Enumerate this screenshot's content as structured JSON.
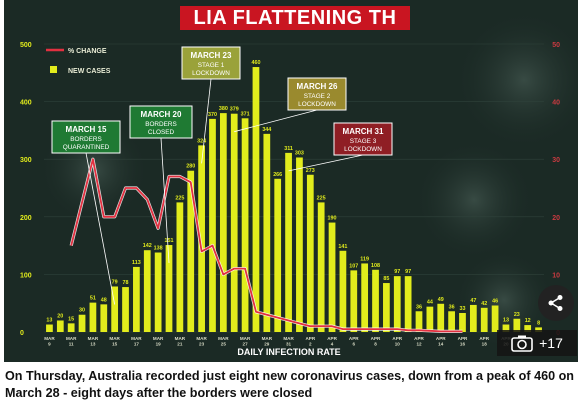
{
  "banner": {
    "text": "LIA FLATTENING TH"
  },
  "legend": {
    "change_label": "% CHANGE",
    "cases_label": "NEW CASES"
  },
  "annotations": [
    {
      "id": "mar15",
      "line1": "MARCH 15",
      "line2": "BORDERS",
      "line3": "QUARANTINED",
      "day": 15,
      "fill": "#1f7a33",
      "text": "#ffffff"
    },
    {
      "id": "mar20",
      "line1": "MARCH 20",
      "line2": "BORDERS",
      "line3": "CLOSED",
      "day": 20,
      "fill": "#1f7a33",
      "text": "#ffffff"
    },
    {
      "id": "mar23",
      "line1": "MARCH 23",
      "line2": "STAGE 1",
      "line3": "LOCKDOWN",
      "day": 23,
      "fill": "#9aa23a",
      "text": "#ffffff"
    },
    {
      "id": "mar26",
      "line1": "MARCH 26",
      "line2": "STAGE 2",
      "line3": "LOCKDOWN",
      "day": 26,
      "fill": "#9a8a2e",
      "text": "#ffffff"
    },
    {
      "id": "mar31",
      "line1": "MARCH 31",
      "line2": "STAGE 3",
      "line3": "LOCKDOWN",
      "day": 31,
      "fill": "#8f1e24",
      "text": "#ffffff"
    }
  ],
  "chart_data": {
    "type": "bar",
    "xlabel": "DAILY INFECTION RATE",
    "ylim": [
      0,
      500
    ],
    "y_ticks": [
      "0",
      "100",
      "200",
      "300",
      "400",
      "500"
    ],
    "y2_ticks": [
      "0",
      "10",
      "20",
      "30",
      "40",
      "50"
    ],
    "x_ticks": [
      "MAR 9",
      "MAR 11",
      "MAR 13",
      "MAR 15",
      "MAR 17",
      "MAR 19",
      "MAR 21",
      "MAR 23",
      "MAR 25",
      "MAR 27",
      "MAR 29",
      "MAR 31",
      "APR 2",
      "APR 4",
      "APR 6",
      "APR 8",
      "APR 10",
      "APR 12",
      "APR 14",
      "APR 16",
      "APR 18",
      "APR 20"
    ],
    "values": [
      13,
      20,
      15,
      30,
      51,
      48,
      79,
      78,
      113,
      142,
      138,
      151,
      225,
      280,
      324,
      370,
      380,
      379,
      371,
      460,
      344,
      266,
      311,
      303,
      273,
      225,
      190,
      141,
      107,
      119,
      108,
      85,
      97,
      97,
      36,
      44,
      49,
      36,
      33,
      47,
      42,
      46,
      13,
      23,
      12,
      8
    ],
    "pct_change": [
      15,
      null,
      30,
      20,
      20,
      25,
      25,
      23,
      18,
      27,
      27,
      26,
      14,
      15,
      10,
      11,
      11,
      3.5,
      3,
      2.5,
      2,
      1.5,
      1,
      1,
      1,
      0.5,
      0.5,
      0.5,
      0.5,
      0.5,
      0.5,
      0.3,
      0.3,
      0.2,
      0.1,
      0.1,
      0.1
    ],
    "pct_start_index": 2,
    "series": [
      {
        "name": "NEW CASES",
        "color": "#e2ec1c"
      },
      {
        "name": "% CHANGE",
        "color": "#e23040"
      }
    ]
  },
  "share": {
    "icon": "share-icon"
  },
  "gallery": {
    "count": "+17",
    "icon": "camera-icon"
  },
  "caption": "On Thursday, Australia recorded just eight new coronavirus cases, down from a peak of 460 on March 28 - eight days after the borders were closed"
}
